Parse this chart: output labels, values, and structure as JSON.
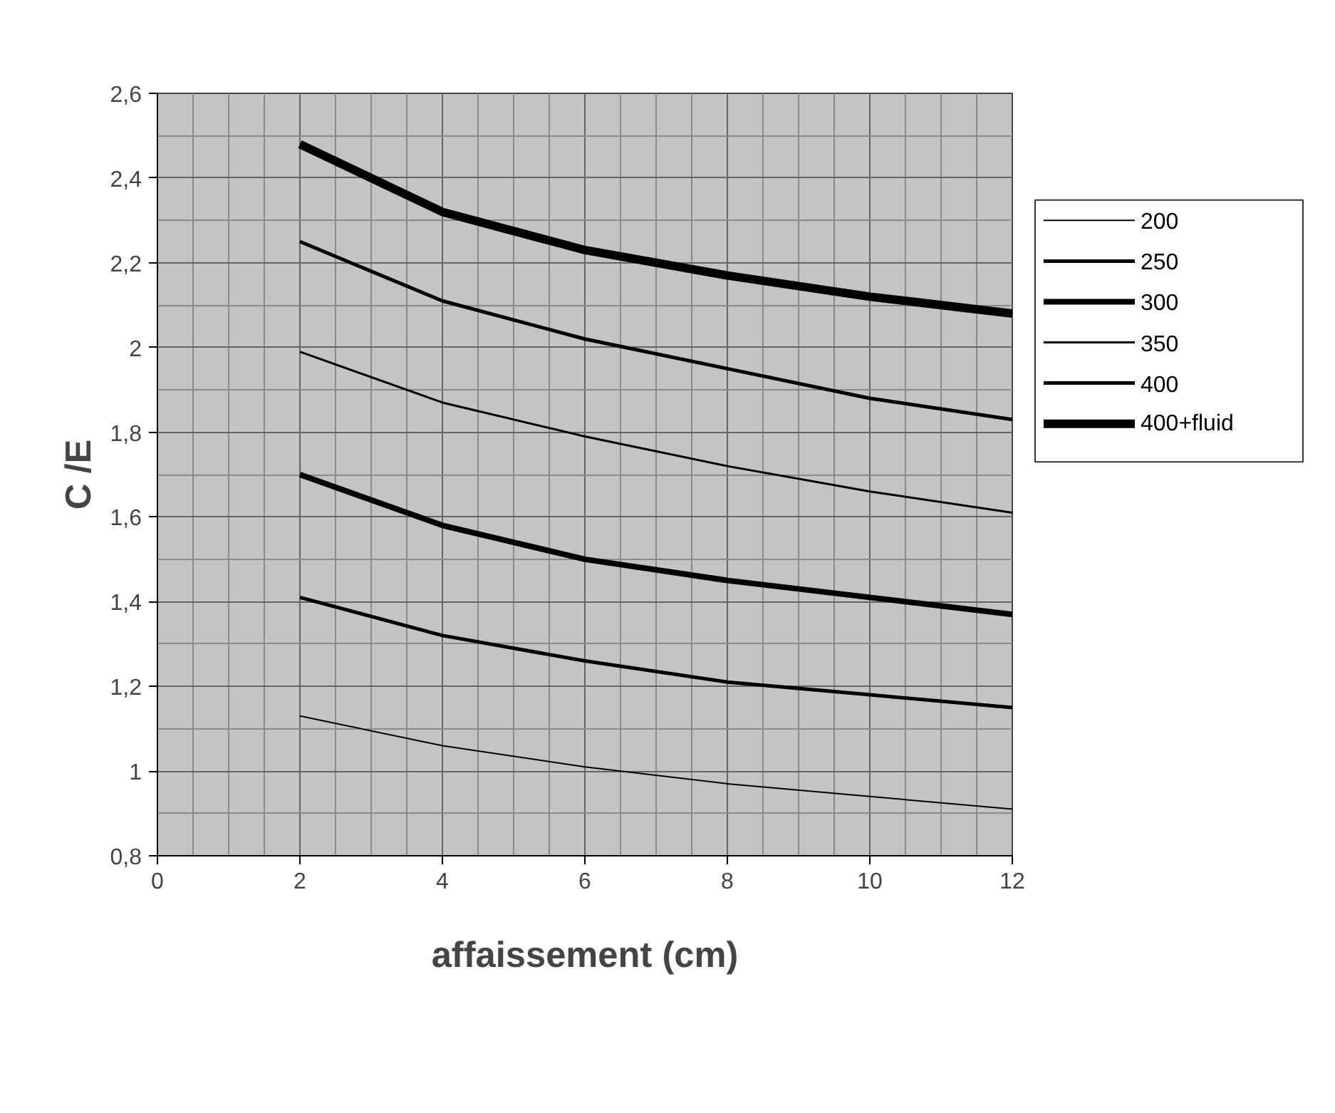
{
  "chart_data": {
    "type": "line",
    "xlabel": "affaissement (cm)",
    "ylabel": "C /E",
    "x": [
      2,
      4,
      6,
      8,
      10,
      12
    ],
    "series": [
      {
        "name": "200",
        "color": "#000000",
        "values": [
          1.13,
          1.06,
          1.01,
          0.97,
          0.94,
          0.91
        ]
      },
      {
        "name": "250",
        "color": "#000000",
        "values": [
          1.41,
          1.32,
          1.26,
          1.21,
          1.18,
          1.15
        ]
      },
      {
        "name": "300",
        "color": "#000000",
        "values": [
          1.7,
          1.58,
          1.5,
          1.45,
          1.41,
          1.37
        ]
      },
      {
        "name": "350",
        "color": "#000000",
        "values": [
          1.99,
          1.87,
          1.79,
          1.72,
          1.66,
          1.61
        ]
      },
      {
        "name": "400",
        "color": "#000000",
        "values": [
          2.25,
          2.11,
          2.02,
          1.95,
          1.88,
          1.83
        ]
      },
      {
        "name": "400+fluid",
        "color": "#000000",
        "values": [
          2.48,
          2.32,
          2.23,
          2.17,
          2.12,
          2.08
        ]
      }
    ],
    "xlim": [
      0,
      12
    ],
    "ylim": [
      0.8,
      2.6
    ],
    "xticks": [
      0,
      2,
      4,
      6,
      8,
      10,
      12
    ],
    "yticks": [
      {
        "value": 0.8,
        "label": "0,8"
      },
      1,
      {
        "value": 1.2,
        "label": "1,2"
      },
      {
        "value": 1.4,
        "label": "1,4"
      },
      {
        "value": 1.6,
        "label": "1,6"
      },
      {
        "value": 1.8,
        "label": "1,8"
      },
      2,
      {
        "value": 2.2,
        "label": "2,2"
      },
      {
        "value": 2.4,
        "label": "2,4"
      },
      {
        "value": 2.6,
        "label": "2,6"
      }
    ],
    "grid": true,
    "legend": "right",
    "marker": "none",
    "line_style": "solid"
  }
}
